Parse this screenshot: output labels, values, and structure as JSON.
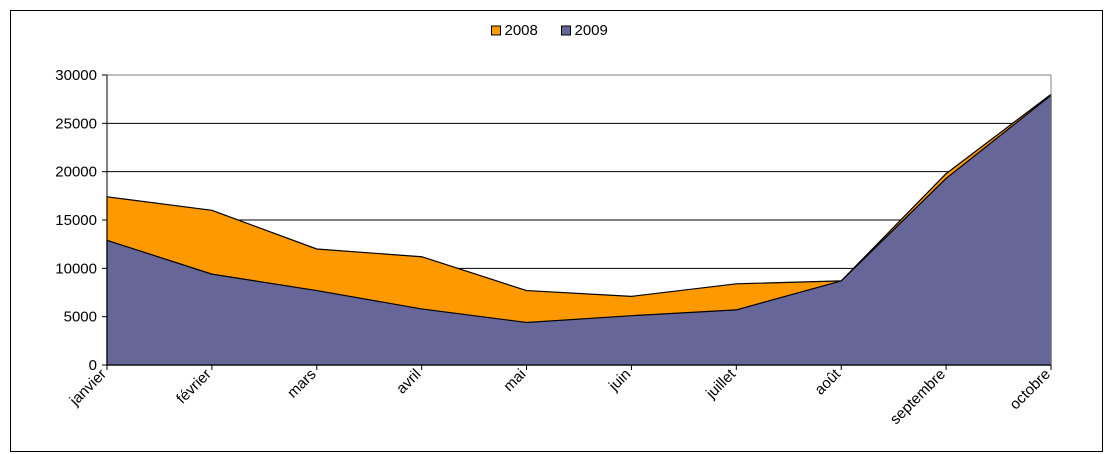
{
  "chart_data": {
    "type": "area",
    "stacked": false,
    "categories": [
      "janvier",
      "février",
      "mars",
      "avril",
      "mai",
      "juin",
      "juillet",
      "août",
      "septembre",
      "octobre"
    ],
    "series": [
      {
        "name": "2008",
        "color": "#ff9900",
        "values": [
          17400,
          16000,
          12000,
          11200,
          7700,
          7100,
          8400,
          8700,
          19800,
          28000
        ]
      },
      {
        "name": "2009",
        "color": "#666699",
        "values": [
          12900,
          9400,
          7700,
          5800,
          4400,
          5100,
          5700,
          8700,
          19300,
          27900
        ]
      }
    ],
    "ylim": [
      0,
      30000
    ],
    "yticks": [
      "0",
      "5000",
      "10000",
      "15000",
      "20000",
      "25000",
      "30000"
    ],
    "grid": true,
    "legend": "top-center"
  }
}
